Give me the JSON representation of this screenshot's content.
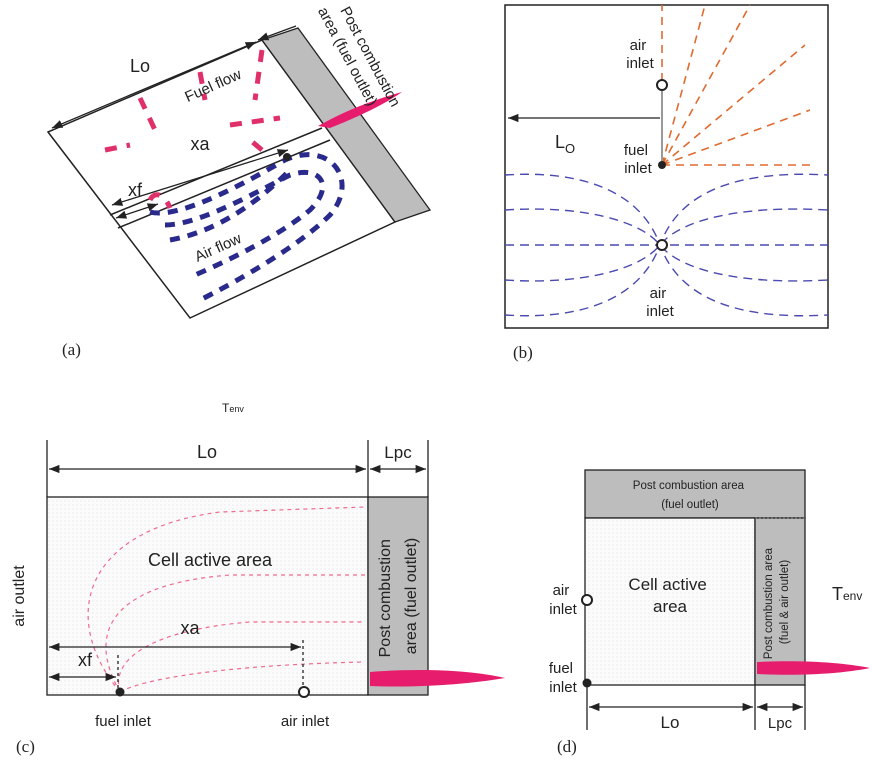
{
  "panels": [
    {
      "label": "(a)",
      "lo": "Lo",
      "fuel_flow": "Fuel flow",
      "xa": "xa",
      "xf": "xf",
      "air_flow": "Air flow",
      "post_combustion": [
        "Post combustion",
        "area (fuel outlet)"
      ]
    },
    {
      "label": "(b)",
      "air_inlet_top": [
        "air",
        "inlet"
      ],
      "lo": [
        "L",
        "O"
      ],
      "fuel_inlet": [
        "fuel",
        "inlet"
      ],
      "air_inlet_bottom": [
        "air",
        "inlet"
      ]
    },
    {
      "label": "(c)",
      "t_env": [
        "T",
        "env"
      ],
      "lo": "Lo",
      "lpc": "Lpc",
      "air_outlet": "air outlet",
      "cell_active_area": "Cell active area",
      "xa": "xa",
      "xf": "xf",
      "post_combustion": [
        "Post combustion",
        "area (fuel outlet)"
      ],
      "fuel_inlet": "fuel inlet",
      "air_inlet": "air inlet"
    },
    {
      "label": "(d)",
      "post_combustion_top": [
        "Post combustion area",
        "(fuel outlet)"
      ],
      "cell_active_area": [
        "Cell active",
        "area"
      ],
      "air_inlet": [
        "air",
        "inlet"
      ],
      "fuel_inlet": [
        "fuel",
        "inlet"
      ],
      "post_combustion_side": [
        "Post combustion area",
        "(fuel & air outlet)"
      ],
      "t_env": [
        "T",
        "env"
      ],
      "lo": "Lo",
      "lpc": "Lpc"
    }
  ]
}
